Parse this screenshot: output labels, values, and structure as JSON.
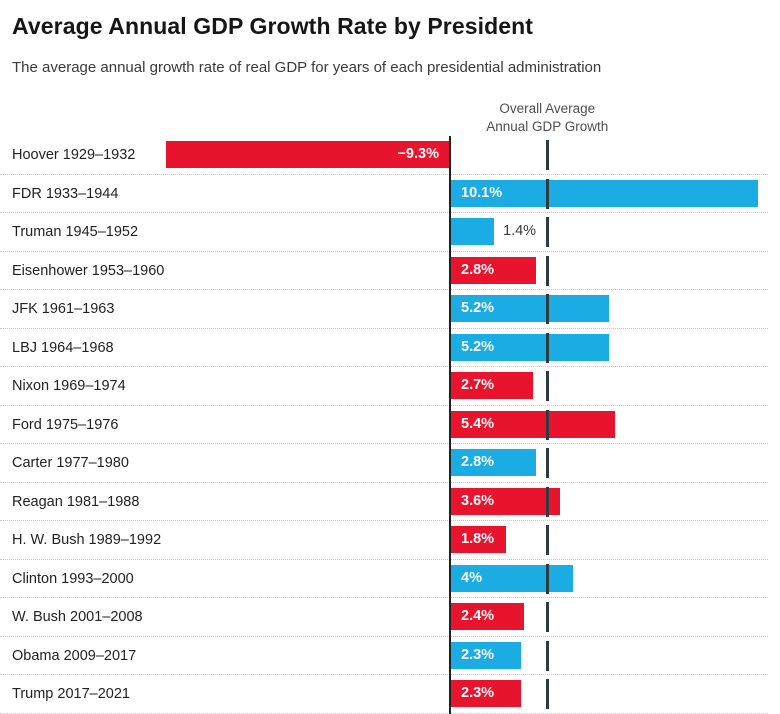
{
  "header": {
    "title": "Average Annual GDP Growth Rate by President",
    "subtitle": "The average annual growth rate of real GDP for years of each presidential administration"
  },
  "colors": {
    "republican": "#e8132d",
    "democrat": "#1bace4",
    "average_line": "#2e3a42",
    "axis_line": "#222222",
    "separator": "#c8c8c8",
    "inside_value_text": "#ffffff",
    "outside_value_text": "#3a3a3a"
  },
  "chart_data": {
    "type": "bar",
    "orientation": "horizontal",
    "diverging": true,
    "title": "Average Annual GDP Growth Rate by President",
    "subtitle": "The average annual growth rate of real GDP for years of each presidential administration",
    "xlabel": "",
    "ylabel": "",
    "xlim": [
      -9.3,
      10.1
    ],
    "unit": "%",
    "grid": "dotted row separators",
    "average_label": {
      "line1": "Overall Average",
      "line2": "Annual GDP Growth"
    },
    "overall_average_pct": 3.2,
    "series": [
      {
        "label": "Hoover 1929–1932",
        "value": -9.3,
        "display": "−9.3%",
        "party_color": "republican",
        "value_label": "inside-end"
      },
      {
        "label": "FDR 1933–1944",
        "value": 10.1,
        "display": "10.1%",
        "party_color": "democrat",
        "value_label": "inside-start"
      },
      {
        "label": "Truman 1945–1952",
        "value": 1.4,
        "display": "1.4%",
        "party_color": "democrat",
        "value_label": "outside"
      },
      {
        "label": "Eisenhower 1953–1960",
        "value": 2.8,
        "display": "2.8%",
        "party_color": "republican",
        "value_label": "inside-start"
      },
      {
        "label": "JFK 1961–1963",
        "value": 5.2,
        "display": "5.2%",
        "party_color": "democrat",
        "value_label": "inside-start"
      },
      {
        "label": "LBJ 1964–1968",
        "value": 5.2,
        "display": "5.2%",
        "party_color": "democrat",
        "value_label": "inside-start"
      },
      {
        "label": "Nixon 1969–1974",
        "value": 2.7,
        "display": "2.7%",
        "party_color": "republican",
        "value_label": "inside-start"
      },
      {
        "label": "Ford 1975–1976",
        "value": 5.4,
        "display": "5.4%",
        "party_color": "republican",
        "value_label": "inside-start"
      },
      {
        "label": "Carter 1977–1980",
        "value": 2.8,
        "display": "2.8%",
        "party_color": "democrat",
        "value_label": "inside-start"
      },
      {
        "label": "Reagan 1981–1988",
        "value": 3.6,
        "display": "3.6%",
        "party_color": "republican",
        "value_label": "inside-start"
      },
      {
        "label": "H. W. Bush 1989–1992",
        "value": 1.8,
        "display": "1.8%",
        "party_color": "republican",
        "value_label": "inside-start"
      },
      {
        "label": "Clinton 1993–2000",
        "value": 4.0,
        "display": "4%",
        "party_color": "democrat",
        "value_label": "inside-start"
      },
      {
        "label": "W. Bush 2001–2008",
        "value": 2.4,
        "display": "2.4%",
        "party_color": "republican",
        "value_label": "inside-start"
      },
      {
        "label": "Obama 2009–2017",
        "value": 2.3,
        "display": "2.3%",
        "party_color": "democrat",
        "value_label": "inside-start"
      },
      {
        "label": "Trump 2017–2021",
        "value": 2.3,
        "display": "2.3%",
        "party_color": "republican",
        "value_label": "inside-start"
      }
    ]
  }
}
